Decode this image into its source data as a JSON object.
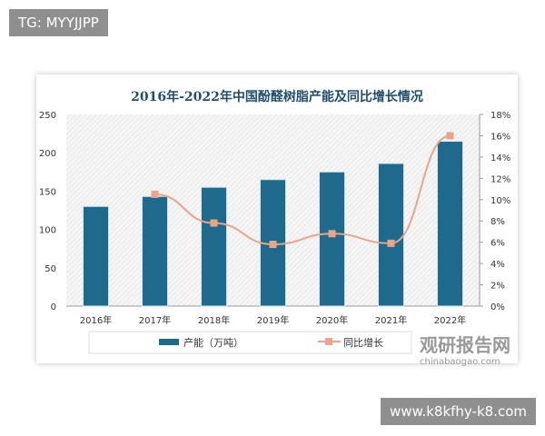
{
  "tag": "TG: MYYJJPP",
  "footer_url": "www.k8kfhy-k8.com",
  "watermark": {
    "name": "观研报告网",
    "url": "chinabaogao.com"
  },
  "chart_data": {
    "type": "bar+line",
    "title": "2016年-2022年中国酚醛树脂产能及同比增长情况",
    "categories": [
      "2016年",
      "2017年",
      "2018年",
      "2019年",
      "2020年",
      "2021年",
      "2022年"
    ],
    "series": [
      {
        "name": "产能（万吨）",
        "type": "bar",
        "axis": "left",
        "color": "#1f6a8c",
        "values": [
          130,
          143,
          155,
          165,
          175,
          186,
          215
        ]
      },
      {
        "name": "同比增长",
        "type": "line",
        "axis": "right",
        "color": "#e8a58a",
        "values": [
          null,
          10.5,
          7.8,
          5.8,
          6.8,
          5.9,
          16.0
        ]
      }
    ],
    "ylim_left": [
      0,
      250
    ],
    "yticks_left": [
      "0",
      "50",
      "100",
      "150",
      "200",
      "250"
    ],
    "ylim_right": [
      0,
      18
    ],
    "yticks_right": [
      "0%",
      "2%",
      "4%",
      "6%",
      "8%",
      "10%",
      "12%",
      "14%",
      "16%",
      "18%"
    ],
    "legend": "bottom"
  }
}
